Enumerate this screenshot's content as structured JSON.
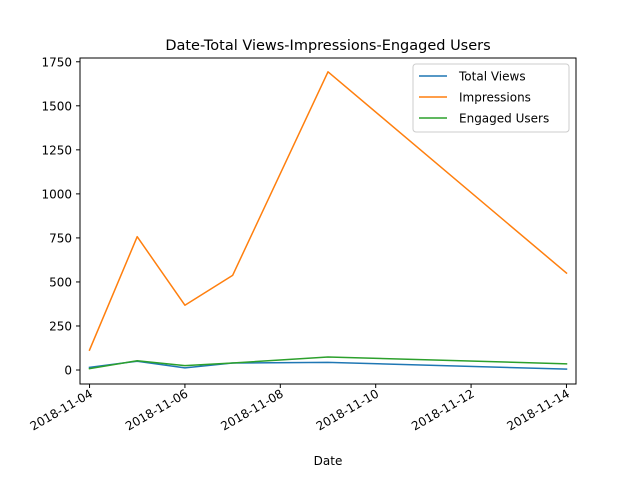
{
  "chart_data": {
    "type": "line",
    "title": "Date-Total Views-Impressions-Engaged Users",
    "xlabel": "Date",
    "ylabel": "",
    "x_type": "date",
    "xlim": [
      "2018-11-03T19:12",
      "2018-11-14T04:48"
    ],
    "ylim": [
      -79.4,
      1771.4
    ],
    "x_ticks": [
      "2018-11-04",
      "2018-11-06",
      "2018-11-08",
      "2018-11-10",
      "2018-11-12",
      "2018-11-14"
    ],
    "y_ticks": [
      0,
      250,
      500,
      750,
      1000,
      1250,
      1500,
      1750
    ],
    "grid": false,
    "legend_position": "upper right",
    "x": [
      "2018-11-04",
      "2018-11-05",
      "2018-11-06",
      "2018-11-07",
      "2018-11-09",
      "2018-11-14"
    ],
    "series": [
      {
        "name": "Total Views",
        "color": "#1f77b4",
        "values": [
          15,
          50,
          12,
          40,
          43,
          5
        ]
      },
      {
        "name": "Impressions",
        "color": "#ff7f0e",
        "values": [
          113,
          757,
          368,
          537,
          1693,
          550
        ]
      },
      {
        "name": "Engaged Users",
        "color": "#2ca02c",
        "values": [
          8,
          53,
          25,
          40,
          74,
          35
        ]
      }
    ]
  }
}
